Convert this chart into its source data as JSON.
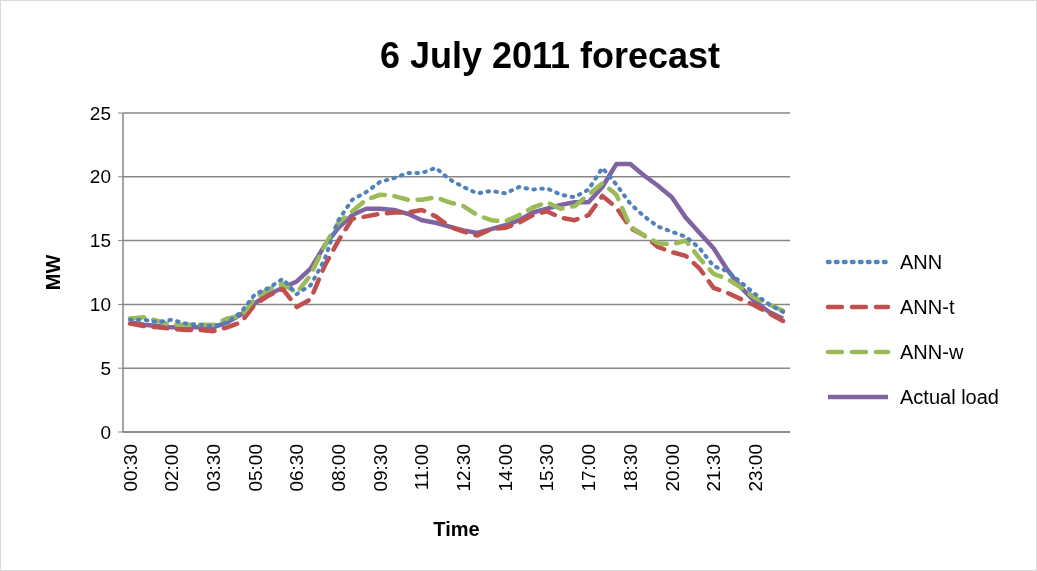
{
  "chart_data": {
    "type": "line",
    "title": "6 July 2011 forecast",
    "xlabel": "Time",
    "ylabel": "MW",
    "categories": [
      "00:30",
      null,
      null,
      "02:00",
      null,
      null,
      "03:30",
      null,
      null,
      "05:00",
      null,
      null,
      "06:30",
      null,
      null,
      "08:00",
      null,
      null,
      "09:30",
      null,
      null,
      "11:00",
      null,
      null,
      "12:30",
      null,
      null,
      "14:00",
      null,
      null,
      "15:30",
      null,
      null,
      "17:00",
      null,
      null,
      "18:30",
      null,
      null,
      "20:00",
      null,
      null,
      "21:30",
      null,
      null,
      "23:00",
      null,
      null
    ],
    "series": [
      {
        "name": "ANN",
        "color": "#4f81bd",
        "line_style": "dotted",
        "values": [
          8.8,
          8.8,
          8.6,
          8.8,
          8.5,
          8.4,
          8.3,
          8.6,
          9.4,
          10.8,
          11.3,
          12.0,
          10.8,
          11.5,
          13.5,
          16.6,
          18.2,
          18.8,
          19.6,
          19.9,
          20.3,
          20.3,
          20.7,
          19.8,
          19.2,
          18.7,
          18.9,
          18.7,
          19.2,
          19.0,
          19.1,
          18.6,
          18.4,
          19.0,
          20.7,
          19.4,
          17.9,
          16.9,
          16.1,
          15.7,
          15.3,
          14.4,
          13.0,
          12.6,
          11.7,
          10.8,
          10.0,
          9.4
        ]
      },
      {
        "name": "ANN-t",
        "color": "#c0504d",
        "line_style": "dashed",
        "values": [
          8.5,
          8.3,
          8.2,
          8.1,
          8.0,
          8.0,
          7.9,
          8.2,
          8.6,
          10.0,
          10.7,
          11.2,
          9.8,
          10.4,
          13.0,
          15.0,
          16.7,
          16.9,
          17.1,
          17.2,
          17.2,
          17.4,
          16.9,
          16.1,
          15.7,
          15.4,
          15.9,
          16.0,
          16.4,
          17.0,
          17.3,
          16.8,
          16.6,
          17.0,
          18.5,
          17.6,
          16.0,
          15.4,
          14.5,
          14.1,
          13.8,
          12.8,
          11.3,
          10.9,
          10.4,
          9.9,
          9.3,
          8.7
        ]
      },
      {
        "name": "ANN-w",
        "color": "#9bbb59",
        "line_style": "dashed",
        "values": [
          8.9,
          9.0,
          8.7,
          8.4,
          8.4,
          8.4,
          8.4,
          8.9,
          9.1,
          10.5,
          11.2,
          11.6,
          10.9,
          12.3,
          14.6,
          16.4,
          17.3,
          18.2,
          18.6,
          18.5,
          18.2,
          18.2,
          18.4,
          18.0,
          17.7,
          17.0,
          16.6,
          16.5,
          17.0,
          17.6,
          18.0,
          17.5,
          17.7,
          18.6,
          19.5,
          18.6,
          16.1,
          15.4,
          14.8,
          14.7,
          15.0,
          13.6,
          12.4,
          12.0,
          11.3,
          10.5,
          10.0,
          9.5
        ]
      },
      {
        "name": "Actual load",
        "color": "#8064a2",
        "line_style": "solid",
        "values": [
          8.6,
          8.4,
          8.3,
          8.2,
          8.2,
          8.2,
          8.2,
          8.6,
          9.2,
          10.1,
          10.8,
          11.3,
          11.8,
          12.8,
          14.6,
          16.0,
          17.0,
          17.5,
          17.5,
          17.4,
          17.1,
          16.6,
          16.4,
          16.1,
          15.8,
          15.6,
          15.9,
          16.2,
          16.6,
          17.2,
          17.5,
          17.8,
          18.0,
          18.0,
          19.2,
          21.0,
          21.0,
          20.1,
          19.3,
          18.4,
          16.8,
          15.6,
          14.4,
          12.7,
          11.3,
          10.2,
          9.4,
          8.9
        ]
      }
    ],
    "ylim": [
      0,
      25
    ],
    "yticks": [
      0,
      5,
      10,
      15,
      20,
      25
    ],
    "grid": "y",
    "legend": "right"
  }
}
